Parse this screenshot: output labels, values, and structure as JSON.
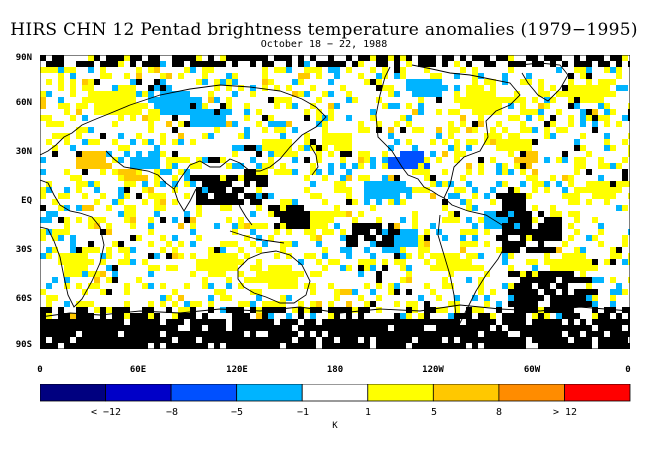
{
  "title": "HIRS CHN 12 Pentad brightness temperature anomalies (1979−1995)",
  "subtitle": "October 18 − 22, 1988",
  "lat_labels": [
    "90N",
    "60N",
    "30N",
    "EQ",
    "30S",
    "60S",
    "90S"
  ],
  "lon_labels": [
    "0",
    "60E",
    "120E",
    "180",
    "120W",
    "60W",
    "0"
  ],
  "colorbar": {
    "colors": [
      "#000080",
      "#0000c8",
      "#0050ff",
      "#00b4ff",
      "#ffffff",
      "#ffff00",
      "#ffc800",
      "#ff8c00",
      "#ff0000"
    ],
    "labels": [
      "< −12",
      "−8",
      "−5",
      "−1",
      "1",
      "5",
      "8",
      "> 12"
    ],
    "units": "K"
  },
  "map": {
    "missing_data_color": "#000000",
    "coastline_color": "#000000"
  }
}
